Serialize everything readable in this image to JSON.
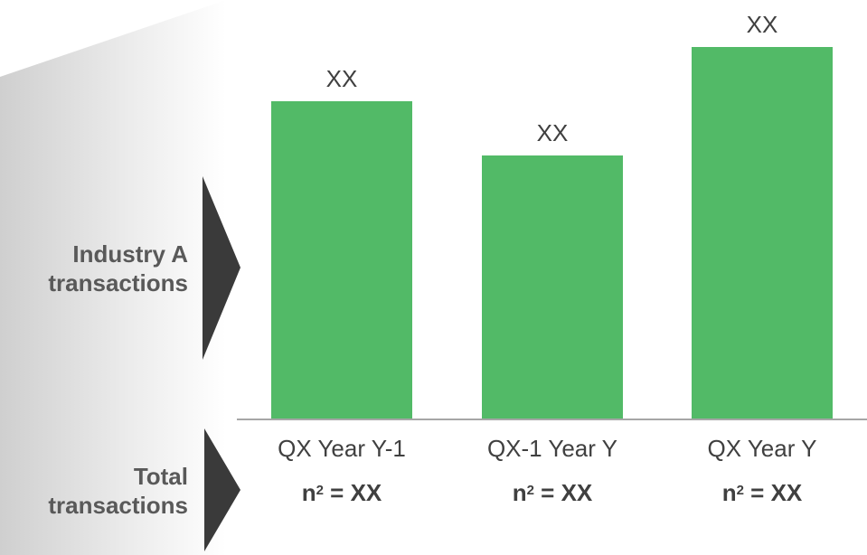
{
  "rows": {
    "industry_label_line1": "Industry A",
    "industry_label_line2": "transactions",
    "total_label_line1": "Total",
    "total_label_line2": "transactions"
  },
  "n_labels": [
    {
      "base": "n",
      "sup": "2",
      "rest": " = XX"
    },
    {
      "base": "n",
      "sup": "2",
      "rest": " = XX"
    },
    {
      "base": "n",
      "sup": "2",
      "rest": " = XX"
    }
  ],
  "colors": {
    "bar": "#52BA67",
    "axis": "#A6A6A6",
    "arrow": "#3A3A3A",
    "label_text": "#404040",
    "row_label_text": "#595959"
  },
  "chart_data": {
    "type": "bar",
    "categories": [
      "QX Year Y-1",
      "QX-1 Year Y",
      "QX Year Y"
    ],
    "values": [
      352,
      292,
      412
    ],
    "data_labels": [
      "XX",
      "XX",
      "XX"
    ],
    "ylim": [
      0,
      420
    ],
    "grid": false,
    "legend": "none"
  }
}
